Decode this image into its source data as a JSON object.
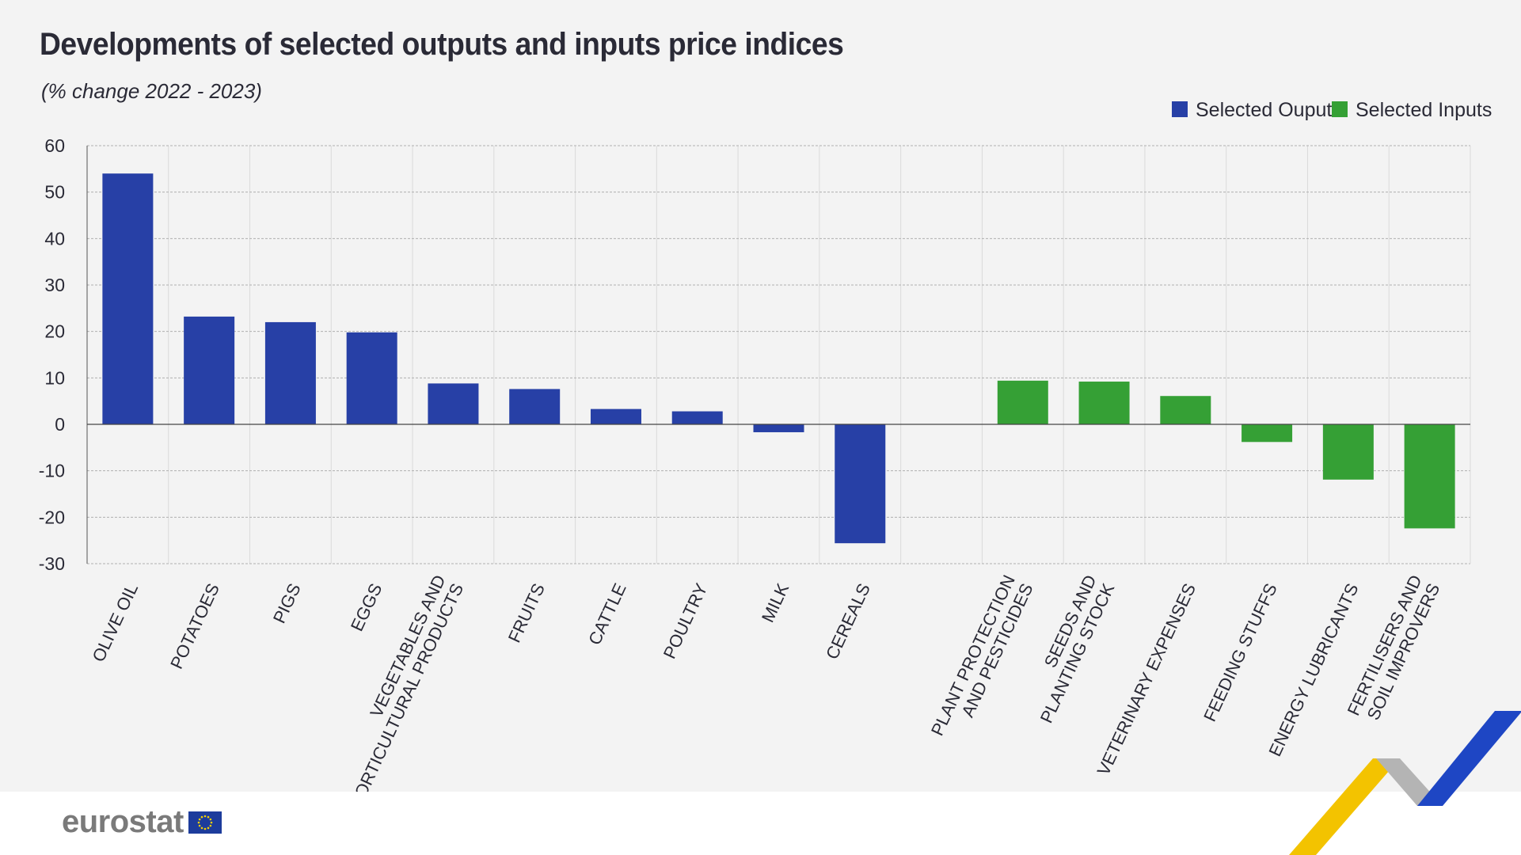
{
  "header": {
    "title": "Developments of selected outputs and inputs price indices",
    "subtitle": "(% change 2022 - 2023)"
  },
  "footer": {
    "logo_text": "eurostat"
  },
  "colors": {
    "outputs": "#2740a6",
    "inputs": "#35a035",
    "background": "#f3f3f3",
    "grid": "#b8b8b8",
    "text": "#2a2a36"
  },
  "chart_data": {
    "type": "bar",
    "title": "Developments of selected outputs and inputs price indices",
    "subtitle": "(% change 2022 - 2023)",
    "xlabel": "",
    "ylabel": "",
    "ylim": [
      -30,
      60
    ],
    "yticks": [
      60,
      50,
      40,
      30,
      20,
      10,
      0,
      -10,
      -20,
      -30
    ],
    "grid": true,
    "legend_position": "top-right",
    "series": [
      {
        "name": "Selected Ouputs",
        "color": "#2740a6"
      },
      {
        "name": "Selected Inputs",
        "color": "#35a035"
      }
    ],
    "categories": [
      {
        "label": [
          "OLIVE OIL"
        ],
        "value": 54,
        "series": "Selected Ouputs"
      },
      {
        "label": [
          "POTATOES"
        ],
        "value": 23.2,
        "series": "Selected Ouputs"
      },
      {
        "label": [
          "PIGS"
        ],
        "value": 22,
        "series": "Selected Ouputs"
      },
      {
        "label": [
          "EGGS"
        ],
        "value": 19.8,
        "series": "Selected Ouputs"
      },
      {
        "label": [
          "VEGETABLES AND",
          "HORTICULTURAL PRODUCTS"
        ],
        "value": 8.8,
        "series": "Selected Ouputs"
      },
      {
        "label": [
          "FRUITS"
        ],
        "value": 7.6,
        "series": "Selected Ouputs"
      },
      {
        "label": [
          "CATTLE"
        ],
        "value": 3.3,
        "series": "Selected Ouputs"
      },
      {
        "label": [
          "POULTRY"
        ],
        "value": 2.8,
        "series": "Selected Ouputs"
      },
      {
        "label": [
          "MILK"
        ],
        "value": -1.7,
        "series": "Selected Ouputs"
      },
      {
        "label": [
          "CEREALS"
        ],
        "value": -25.6,
        "series": "Selected Ouputs"
      },
      {
        "label": [],
        "value": null,
        "series": null
      },
      {
        "label": [
          "PLANT PROTECTION",
          "AND PESTICIDES"
        ],
        "value": 9.4,
        "series": "Selected Inputs"
      },
      {
        "label": [
          "SEEDS AND",
          "PLANTING STOCK"
        ],
        "value": 9.2,
        "series": "Selected Inputs"
      },
      {
        "label": [
          "VETERINARY EXPENSES"
        ],
        "value": 6.1,
        "series": "Selected Inputs"
      },
      {
        "label": [
          "FEEDING STUFFS"
        ],
        "value": -3.8,
        "series": "Selected Inputs"
      },
      {
        "label": [
          "ENERGY LUBRICANTS"
        ],
        "value": -11.9,
        "series": "Selected Inputs"
      },
      {
        "label": [
          "FERTILISERS AND",
          "SOIL IMPROVERS"
        ],
        "value": -22.4,
        "series": "Selected Inputs"
      }
    ]
  }
}
